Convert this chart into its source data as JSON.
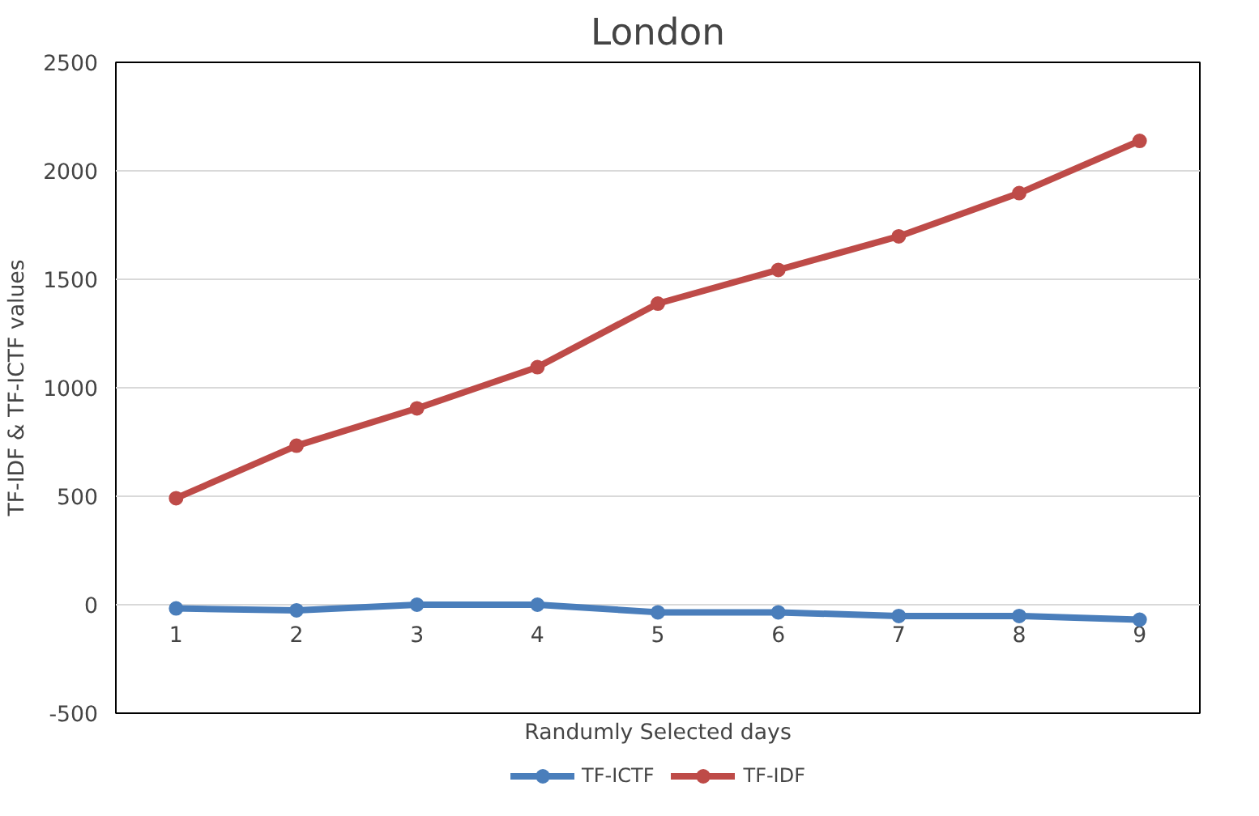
{
  "chart_data": {
    "type": "line",
    "title": "London",
    "xlabel": "Randumly Selected days",
    "ylabel": "TF-IDF & TF-ICTF values",
    "categories": [
      "1",
      "2",
      "3",
      "4",
      "5",
      "6",
      "7",
      "8",
      "9"
    ],
    "series": [
      {
        "name": "TF-ICTF",
        "color": "#4a7ebb",
        "values": [
          -17,
          -26,
          0,
          0,
          -35,
          -35,
          -52,
          -52,
          -69
        ]
      },
      {
        "name": "TF-IDF",
        "color": "#be4b48",
        "values": [
          491,
          733,
          905,
          1095,
          1388,
          1543,
          1698,
          1897,
          2138
        ]
      }
    ],
    "ylim": [
      -500,
      2500
    ],
    "yticks": [
      -500,
      0,
      500,
      1000,
      1500,
      2000,
      2500
    ],
    "grid": "y",
    "legend": "bottom",
    "marker": "circle",
    "line_style": "solid"
  }
}
